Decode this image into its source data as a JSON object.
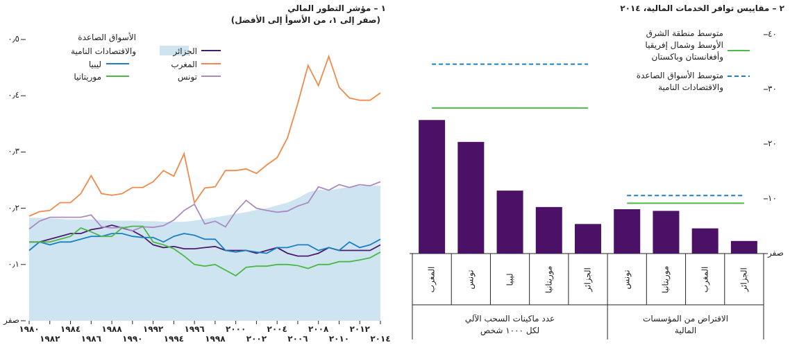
{
  "chart_data": [
    {
      "type": "line",
      "title": "١ – مؤشر التطور المالي",
      "subtitle": "(صفر إلى ١، من الأسوأ إلى الأفضل)",
      "x": [
        1980,
        1981,
        1982,
        1983,
        1984,
        1985,
        1986,
        1987,
        1988,
        1989,
        1990,
        1991,
        1992,
        1993,
        1994,
        1995,
        1996,
        1997,
        1998,
        1999,
        2000,
        2001,
        2002,
        2003,
        2004,
        2005,
        2006,
        2007,
        2008,
        2009,
        2010,
        2011,
        2012,
        2013,
        2014
      ],
      "series": [
        {
          "name": "الأسواق الصاعدة\nوالاقتصادات النامية",
          "color": "#cfe4f1",
          "area": true,
          "values": [
            0.183,
            0.183,
            0.182,
            0.181,
            0.18,
            0.18,
            0.18,
            0.179,
            0.178,
            0.178,
            0.178,
            0.177,
            0.177,
            0.176,
            0.176,
            0.176,
            0.178,
            0.181,
            0.184,
            0.187,
            0.19,
            0.193,
            0.197,
            0.2,
            0.205,
            0.21,
            0.218,
            0.228,
            0.233,
            0.232,
            0.235,
            0.238,
            0.24,
            0.24,
            0.24
          ]
        },
        {
          "name": "الجزائر",
          "color": "#4b1b6b",
          "values": [
            0.14,
            0.14,
            0.145,
            0.15,
            0.155,
            0.155,
            0.162,
            0.165,
            0.17,
            0.165,
            0.16,
            0.15,
            0.135,
            0.13,
            0.132,
            0.128,
            0.128,
            0.13,
            0.132,
            0.125,
            0.125,
            0.125,
            0.12,
            0.125,
            0.13,
            0.12,
            0.115,
            0.115,
            0.12,
            0.13,
            0.125,
            0.125,
            0.125,
            0.125,
            0.135
          ]
        },
        {
          "name": "المغرب",
          "color": "#f08a4b",
          "values": [
            0.186,
            0.194,
            0.196,
            0.21,
            0.21,
            0.226,
            0.258,
            0.226,
            0.223,
            0.226,
            0.237,
            0.237,
            0.247,
            0.267,
            0.257,
            0.297,
            0.21,
            0.236,
            0.238,
            0.267,
            0.267,
            0.27,
            0.262,
            0.277,
            0.29,
            0.325,
            0.386,
            0.454,
            0.418,
            0.47,
            0.415,
            0.396,
            0.392,
            0.392,
            0.405
          ]
        },
        {
          "name": "تونس",
          "color": "#a98bc2",
          "values": [
            0.163,
            0.177,
            0.184,
            0.184,
            0.184,
            0.184,
            0.188,
            0.167,
            0.165,
            0.166,
            0.16,
            0.167,
            0.166,
            0.169,
            0.179,
            0.196,
            0.207,
            0.172,
            0.177,
            0.167,
            0.194,
            0.214,
            0.2,
            0.196,
            0.193,
            0.195,
            0.204,
            0.21,
            0.238,
            0.232,
            0.242,
            0.237,
            0.242,
            0.24,
            0.247
          ]
        },
        {
          "name": "ليبيا",
          "color": "#1b7fc1",
          "values": [
            0.125,
            0.14,
            0.135,
            0.14,
            0.14,
            0.145,
            0.15,
            0.15,
            0.155,
            0.155,
            0.15,
            0.148,
            0.148,
            0.14,
            0.15,
            0.155,
            0.152,
            0.145,
            0.145,
            0.125,
            0.122,
            0.125,
            0.122,
            0.12,
            0.13,
            0.13,
            0.135,
            0.135,
            0.125,
            0.13,
            0.125,
            0.14,
            0.13,
            0.135,
            0.145
          ]
        },
        {
          "name": "موريتانيا",
          "color": "#4cb848",
          "values": [
            0.14,
            0.14,
            0.14,
            0.145,
            0.15,
            0.165,
            0.158,
            0.15,
            0.15,
            0.165,
            0.168,
            0.168,
            0.14,
            0.135,
            0.128,
            0.115,
            0.1,
            0.097,
            0.1,
            0.09,
            0.08,
            0.095,
            0.097,
            0.097,
            0.1,
            0.1,
            0.098,
            0.093,
            0.1,
            0.1,
            0.105,
            0.105,
            0.108,
            0.112,
            0.122
          ]
        }
      ],
      "xlim": [
        1980,
        2014
      ],
      "xticks": [
        {
          "value": 1980,
          "label": "١٩٨٠"
        },
        {
          "value": 1982,
          "label": "١٩٨٢"
        },
        {
          "value": 1984,
          "label": "١٩٨٤"
        },
        {
          "value": 1986,
          "label": "١٩٨٦"
        },
        {
          "value": 1988,
          "label": "١٩٨٨"
        },
        {
          "value": 1990,
          "label": "١٩٩٠"
        },
        {
          "value": 1992,
          "label": "١٩٩٢"
        },
        {
          "value": 1994,
          "label": "١٩٩٤"
        },
        {
          "value": 1996,
          "label": "١٩٩٦"
        },
        {
          "value": 1998,
          "label": "١٩٩٨"
        },
        {
          "value": 2000,
          "label": "٢٠٠٠"
        },
        {
          "value": 2002,
          "label": "٢٠٠٢"
        },
        {
          "value": 2004,
          "label": "٢٠٠٤"
        },
        {
          "value": 2006,
          "label": "٢٠٠٦"
        },
        {
          "value": 2008,
          "label": "٢٠٠٨"
        },
        {
          "value": 2010,
          "label": "٢٠١٠"
        },
        {
          "value": 2012,
          "label": "٢٠١٢"
        },
        {
          "value": 2014,
          "label": "٢٠١٤"
        }
      ],
      "ylim": [
        0,
        0.5
      ],
      "yticks": [
        {
          "value": 0,
          "label": "صفر"
        },
        {
          "value": 0.1,
          "label": "٠٫١"
        },
        {
          "value": 0.2,
          "label": "٠٫٢"
        },
        {
          "value": 0.3,
          "label": "٠٫٣"
        },
        {
          "value": 0.4,
          "label": "٠٫٤"
        },
        {
          "value": 0.5,
          "label": "٠٫٥"
        }
      ]
    },
    {
      "type": "grouped-bar",
      "title": "٢ – مقاييس توافر الخدمات المالية، ٢٠١٤",
      "color": "#4b1166",
      "groups": [
        {
          "label": "عدد ماكينات السحب الآلي\nلكل ١٠٠٠ شخص",
          "categories": [
            "المغرب",
            "تونس",
            "ليبيا",
            "موريتانيا",
            "الجزائر"
          ],
          "values": [
            24.4,
            20.4,
            11.5,
            8.5,
            5.4
          ]
        },
        {
          "label": "الاقتراض من المؤسسات المالية",
          "categories": [
            "تونس",
            "موريتانيا",
            "المغرب",
            "الجزائر"
          ],
          "values": [
            8.1,
            7.8,
            4.6,
            2.3
          ]
        }
      ],
      "reference_lines": [
        {
          "name": "متوسط منطقة الشرق\nالأوسط وشمال إفريقيا\nوأفغانستان وباكستان",
          "color": "#4cb848",
          "dashed": false,
          "values": [
            26.6,
            9.2
          ]
        },
        {
          "name": "متوسط الأسواق الصاعدة\nوالاقتصادات النامية",
          "color": "#1b7fc1",
          "dashed": true,
          "values": [
            34.6,
            10.6
          ]
        }
      ],
      "ylim": [
        0,
        40
      ],
      "yticks": [
        {
          "value": 0,
          "label": "صفر"
        },
        {
          "value": 10,
          "label": "١٠"
        },
        {
          "value": 20,
          "label": "٢٠"
        },
        {
          "value": 30,
          "label": "٣٠"
        },
        {
          "value": 40,
          "label": "٤٠"
        }
      ]
    }
  ]
}
